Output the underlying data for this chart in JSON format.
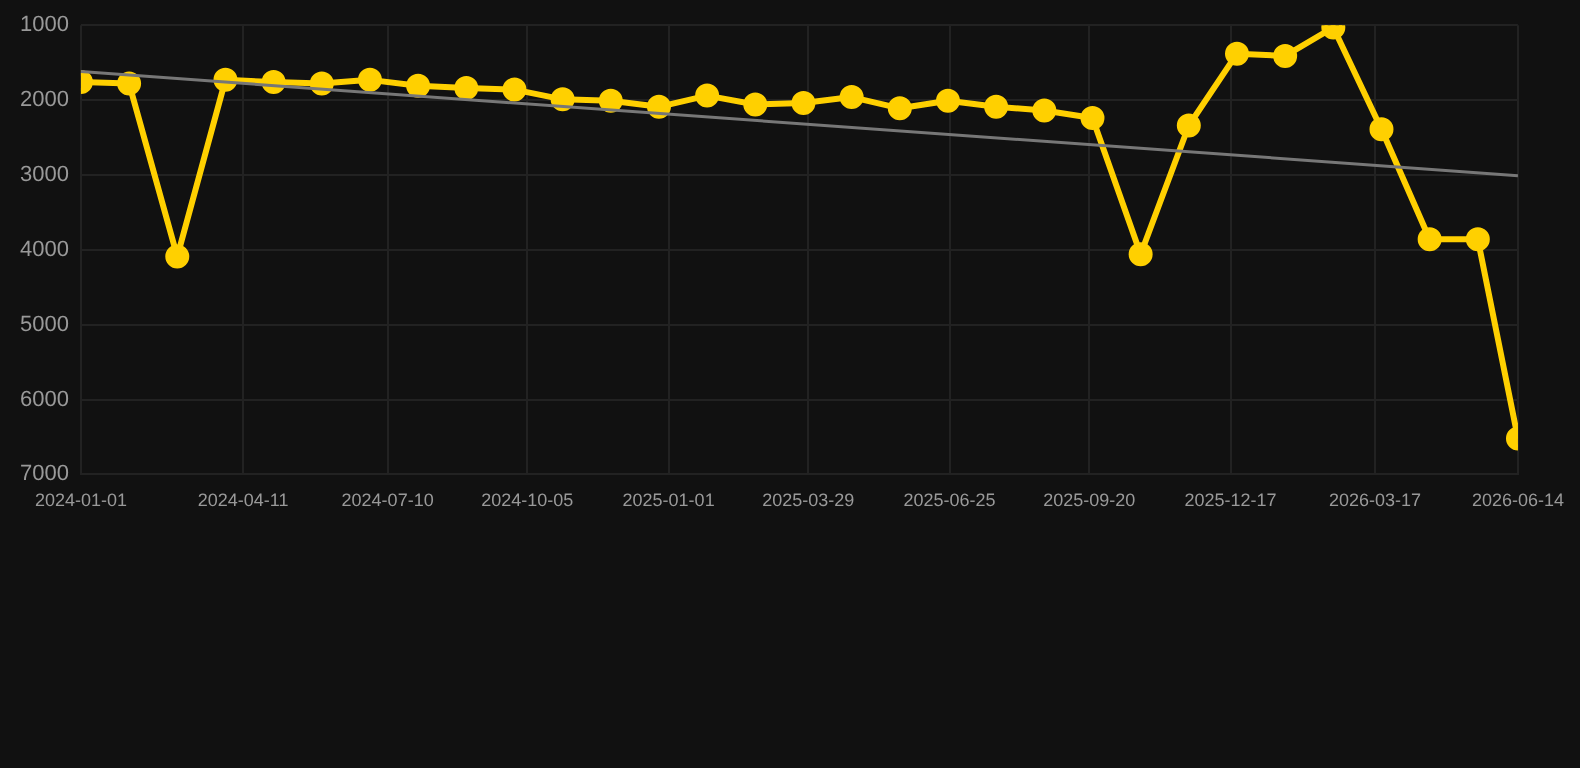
{
  "chart_data": {
    "type": "line",
    "series": [
      {
        "color": "#ffd000",
        "x": [
          "2024-01-01",
          "2024-01-31",
          "2024-03-01",
          "2024-03-31",
          "2024-04-30",
          "2024-05-30",
          "2024-06-29",
          "2024-07-29",
          "2024-08-28",
          "2024-09-27",
          "2024-10-27",
          "2024-11-26",
          "2024-12-26",
          "2025-01-25",
          "2025-02-24",
          "2025-03-26",
          "2025-04-25",
          "2025-05-25",
          "2025-06-24",
          "2025-07-24",
          "2025-08-23",
          "2025-09-22",
          "2025-10-22",
          "2025-11-21",
          "2025-12-21",
          "2026-01-20",
          "2026-02-19",
          "2026-03-21",
          "2026-04-20",
          "2026-05-20",
          "2026-06-14"
        ],
        "values": [
          1760,
          1780,
          4090,
          1730,
          1760,
          1780,
          1730,
          1810,
          1840,
          1860,
          1990,
          2010,
          2090,
          1940,
          2060,
          2040,
          1960,
          2110,
          2010,
          2090,
          2140,
          2240,
          4060,
          2340,
          1380,
          1410,
          1030,
          2390,
          3860,
          3860,
          6520
        ],
        "marker": "circle"
      },
      {
        "type": "line",
        "color": "#777777",
        "x": [
          "2024-01-01",
          "2026-06-14"
        ],
        "values": [
          1620,
          3010
        ],
        "marker": "none"
      }
    ],
    "xlim": [
      "2024-01-01",
      "2026-06-14"
    ],
    "xticks": [
      "2024-01-01",
      "2024-04-11",
      "2024-07-10",
      "2024-10-05",
      "2025-01-01",
      "2025-03-29",
      "2025-06-25",
      "2025-09-20",
      "2025-12-17",
      "2026-03-17",
      "2026-06-14"
    ],
    "ylim": [
      7000,
      1000
    ],
    "yticks": [
      1000,
      2000,
      3000,
      4000,
      5000,
      6000,
      7000
    ],
    "grid": true
  }
}
